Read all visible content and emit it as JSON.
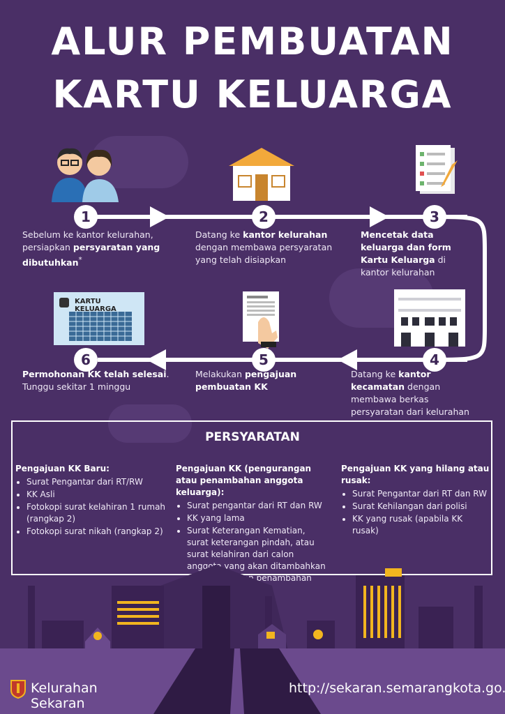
{
  "title": {
    "line1": "ALUR PEMBUATAN",
    "line2": "KARTU KELUARGA"
  },
  "steps": [
    {
      "num": "1",
      "pre": "Sebelum ke kantor kelurahan, persiapkan ",
      "bold": "persyaratan yang dibutuhkan",
      "post": "*"
    },
    {
      "num": "2",
      "pre": "Datang ke ",
      "bold": "kantor kelurahan",
      "post": " dengan membawa persyaratan yang telah disiapkan"
    },
    {
      "num": "3",
      "pre": "",
      "bold": "Mencetak data keluarga dan form Kartu Keluarga",
      "post": " di kantor kelurahan"
    },
    {
      "num": "4",
      "pre": "Datang ke ",
      "bold": "kantor kecamatan",
      "post": " dengan membawa berkas persyaratan dari kelurahan"
    },
    {
      "num": "5",
      "pre": "Melakukan ",
      "bold": "pengajuan pembuatan KK",
      "post": ""
    },
    {
      "num": "6",
      "pre": "",
      "bold": "Permohonan KK telah selesai",
      "post": ". Tunggu sekitar 1 minggu"
    }
  ],
  "card_label": "KARTU KELUARGA",
  "requirements": {
    "title": "PERSYARATAN",
    "columns": [
      {
        "heading": "Pengajuan KK Baru:",
        "items": [
          "Surat Pengantar dari RT/RW",
          "KK Asli",
          "Fotokopi surat kelahiran 1 rumah (rangkap 2)",
          "Fotokopi surat nikah (rangkap 2)"
        ]
      },
      {
        "heading": "Pengajuan KK (pengurangan atau penambahan anggota keluarga):",
        "items": [
          "Surat pengantar dari RT dan RW",
          "KK yang lama",
          "Surat Keterangan Kematian, surat keterangan pindah, atau surat kelahiran dari calon anggota yang akan ditambahkan (bila melakukan penambahan anggota keluarga)."
        ]
      },
      {
        "heading": "Pengajuan KK yang hilang atau rusak:",
        "items": [
          "Surat Pengantar dari RT dan RW",
          "Surat Kehilangan dari polisi",
          "KK yang rusak (apabila KK rusak)"
        ]
      }
    ]
  },
  "footer": {
    "org": "Kelurahan Sekaran",
    "url": "http://sekaran.semarangkota.go.id"
  },
  "colors": {
    "background": "#4a2f66",
    "accent_yellow": "#f2b51f",
    "arrow": "#ffffff"
  },
  "icons": [
    "people-icon",
    "house-icon",
    "checklist-icon",
    "office-building-icon",
    "document-sign-icon",
    "family-card-icon",
    "city-skyline",
    "semarang-emblem-icon"
  ]
}
